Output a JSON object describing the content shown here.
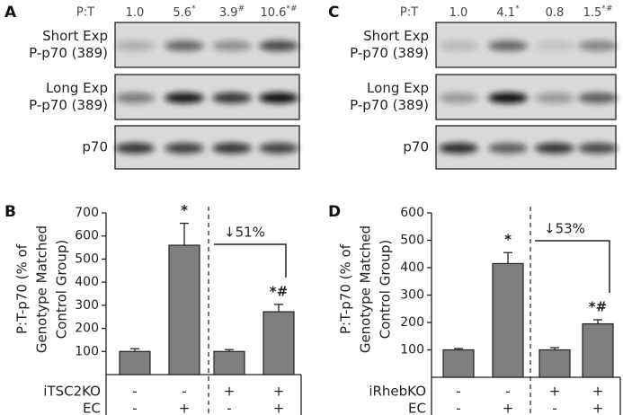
{
  "blot_panels": [
    {
      "label": "A",
      "ratio_label": "P:T",
      "ratios": [
        {
          "text": "1.0"
        },
        {
          "text": "5.6",
          "sup": "*"
        },
        {
          "text": "3.9",
          "sup": "#"
        },
        {
          "text": "10.6",
          "sup": "*#"
        }
      ],
      "rows": [
        {
          "lines": [
            "Short Exp",
            "P-p70 (389)"
          ]
        },
        {
          "lines": [
            "Long Exp",
            "P-p70 (389)"
          ]
        },
        {
          "lines": [
            "p70"
          ]
        }
      ]
    },
    {
      "label": "C",
      "ratio_label": "P:T",
      "ratios": [
        {
          "text": "1.0"
        },
        {
          "text": "4.1",
          "sup": "*"
        },
        {
          "text": "0.8"
        },
        {
          "text": "1.5",
          "sup": "*#"
        }
      ],
      "rows": [
        {
          "lines": [
            "Short Exp",
            "P-p70 (389)"
          ]
        },
        {
          "lines": [
            "Long Exp",
            "P-p70 (389)"
          ]
        },
        {
          "lines": [
            "p70"
          ]
        }
      ]
    }
  ],
  "chart_data": [
    {
      "type": "bar",
      "label": "B",
      "ylabel": [
        "P:T-p70 (% of",
        "Genotype Matched",
        "Control Group)"
      ],
      "series": [
        {
          "color": "#7f7f7f",
          "values": [
            100,
            560,
            100,
            272
          ],
          "errors": [
            12,
            95,
            8,
            32
          ],
          "significance": [
            null,
            "*",
            null,
            "*#"
          ]
        }
      ],
      "ylim": [
        0,
        700
      ],
      "yticks": [
        100,
        200,
        300,
        400,
        500,
        600,
        700
      ],
      "conditions": [
        {
          "name": "iTSC2KO",
          "values": [
            "-",
            "-",
            "+",
            "+"
          ]
        },
        {
          "name": "EC",
          "values": [
            "-",
            "+",
            "-",
            "+"
          ]
        }
      ],
      "change_label": "↓51%"
    },
    {
      "type": "bar",
      "label": "D",
      "ylabel": [
        "P:T-p70 (% of",
        "Genotype Matched",
        "Control Group)"
      ],
      "series": [
        {
          "color": "#7f7f7f",
          "values": [
            100,
            415,
            100,
            195
          ],
          "errors": [
            5,
            40,
            8,
            15
          ],
          "significance": [
            null,
            "*",
            null,
            "*#"
          ]
        }
      ],
      "ylim": [
        0,
        600
      ],
      "yticks": [
        100,
        200,
        300,
        400,
        500,
        600
      ],
      "conditions": [
        {
          "name": "iRhebKO",
          "values": [
            "-",
            "-",
            "+",
            "+"
          ]
        },
        {
          "name": "EC",
          "values": [
            "-",
            "+",
            "-",
            "+"
          ]
        }
      ],
      "change_label": "↓53%"
    }
  ]
}
